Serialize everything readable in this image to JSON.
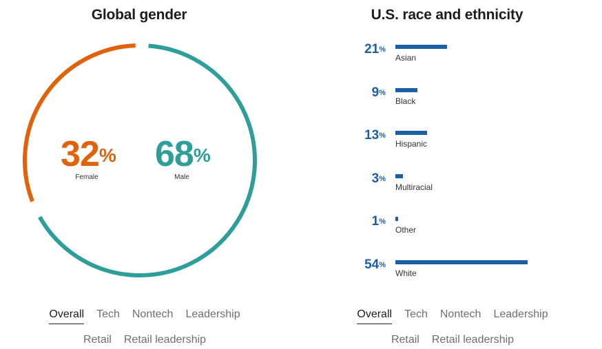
{
  "colors": {
    "female": "#e0620a",
    "male": "#2e9e9a",
    "bar": "#1d5fa5"
  },
  "gender": {
    "title": "Global gender",
    "female": {
      "value": "32",
      "unit": "%",
      "label": "Female"
    },
    "male": {
      "value": "68",
      "unit": "%",
      "label": "Male"
    }
  },
  "race": {
    "title": "U.S. race and ethnicity",
    "items": [
      {
        "value": "21",
        "unit": "%",
        "label": "Asian"
      },
      {
        "value": "9",
        "unit": "%",
        "label": "Black"
      },
      {
        "value": "13",
        "unit": "%",
        "label": "Hispanic"
      },
      {
        "value": "3",
        "unit": "%",
        "label": "Multiracial"
      },
      {
        "value": "1",
        "unit": "%",
        "label": "Other"
      },
      {
        "value": "54",
        "unit": "%",
        "label": "White"
      }
    ]
  },
  "filters": {
    "row1": [
      "Overall",
      "Tech",
      "Nontech",
      "Leadership"
    ],
    "row2": [
      "Retail",
      "Retail leadership"
    ],
    "active": "Overall"
  },
  "chart_data": [
    {
      "type": "pie",
      "title": "Global gender",
      "categories": [
        "Female",
        "Male"
      ],
      "values": [
        32,
        68
      ]
    },
    {
      "type": "bar",
      "title": "U.S. race and ethnicity",
      "categories": [
        "Asian",
        "Black",
        "Hispanic",
        "Multiracial",
        "Other",
        "White"
      ],
      "values": [
        21,
        9,
        13,
        3,
        1,
        54
      ],
      "xlim": [
        0,
        54
      ]
    }
  ]
}
